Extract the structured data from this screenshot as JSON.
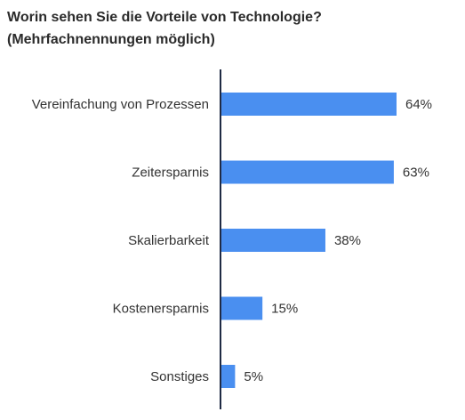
{
  "chart_data": {
    "type": "bar",
    "orientation": "horizontal",
    "title": "Worin sehen Sie die Vorteile von Technologie?",
    "subtitle": "(Mehrfachnennungen möglich)",
    "categories": [
      "Vereinfachung von Prozessen",
      "Zeitersparnis",
      "Skalierbarkeit",
      "Kostenersparnis",
      "Sonstiges"
    ],
    "values": [
      64,
      63,
      38,
      15,
      5
    ],
    "value_labels": [
      "64%",
      "63%",
      "38%",
      "15%",
      "5%"
    ],
    "xlim": [
      0,
      64
    ],
    "grid": false,
    "legend": "none",
    "bar_color": "#4a8ff0",
    "axis_color": "#1f2a44"
  }
}
